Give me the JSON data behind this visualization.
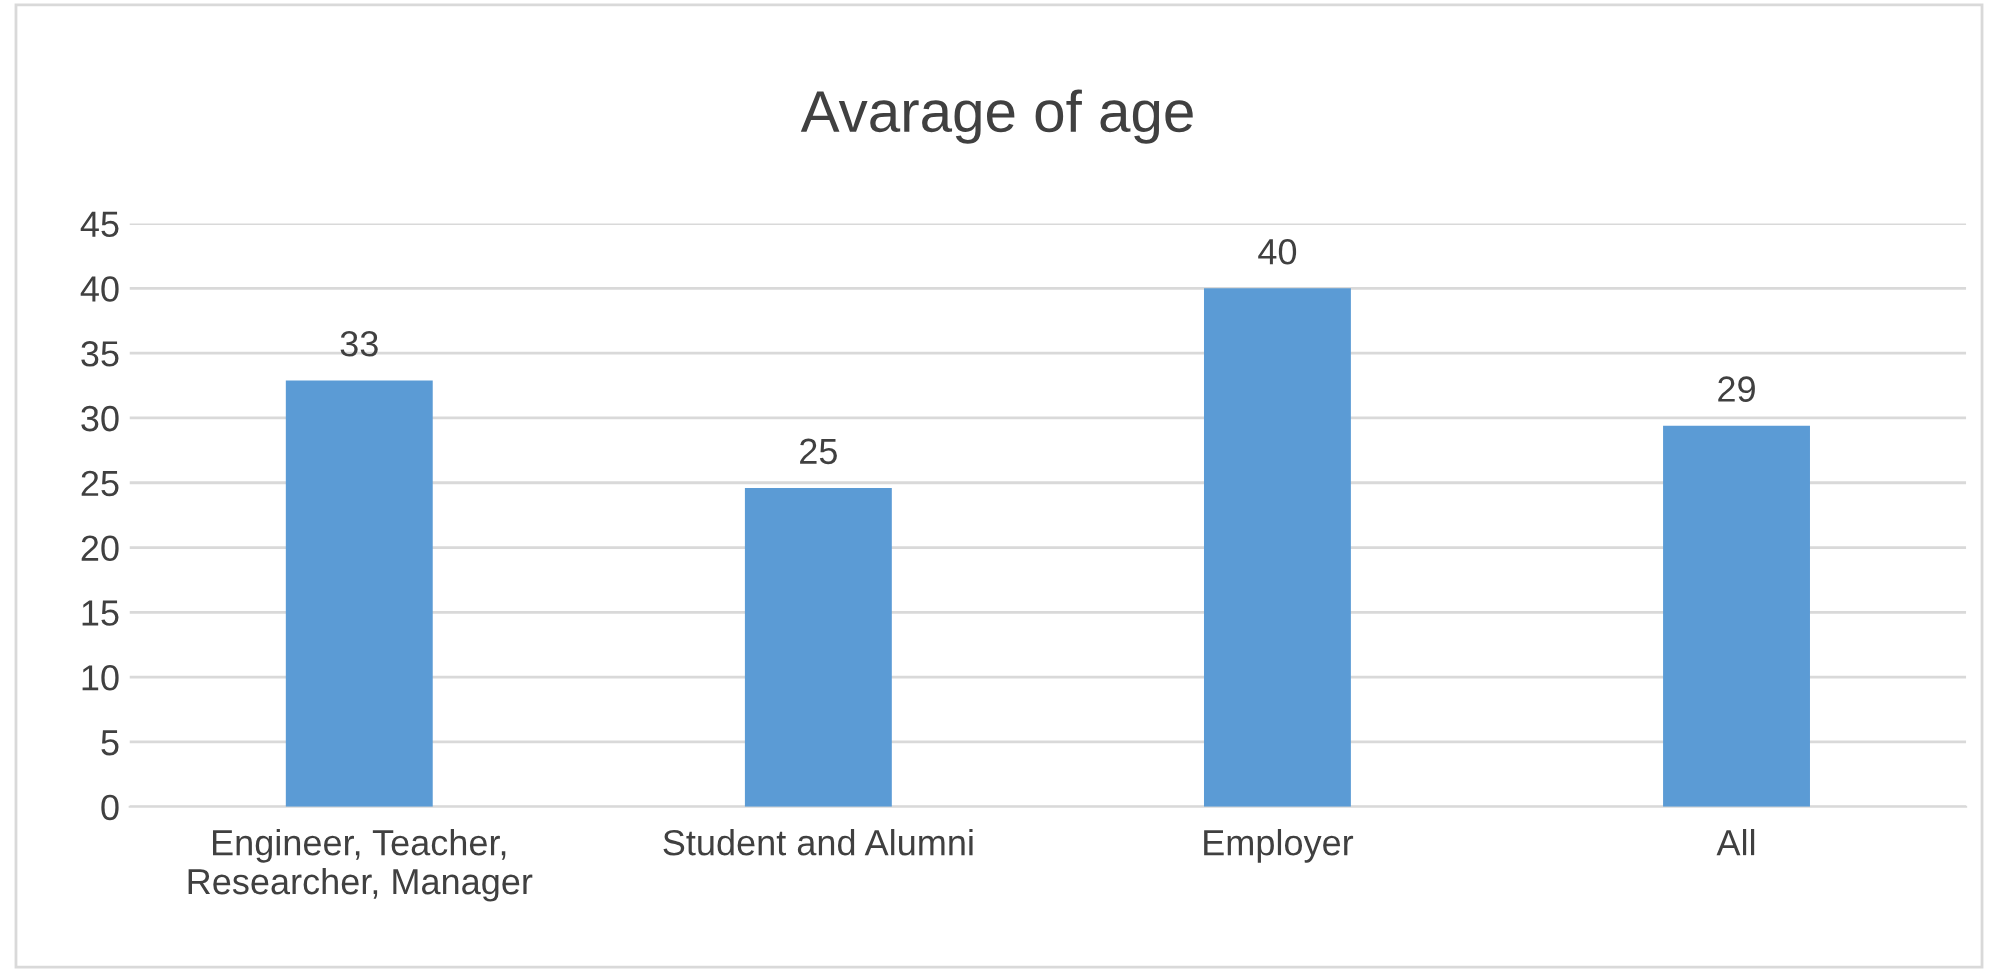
{
  "chart_data": {
    "type": "bar",
    "title": "Avarage of age",
    "categories": [
      "Engineer, Teacher,\nResearcher, Manager",
      "Student and Alumni",
      "Employer",
      "All"
    ],
    "values": [
      32.9,
      24.6,
      40.0,
      29.4
    ],
    "value_labels": [
      "33",
      "25",
      "40",
      "29"
    ],
    "color": "#5b9bd5",
    "ylim": [
      0,
      45
    ],
    "yticks": [
      0,
      5,
      10,
      15,
      20,
      25,
      30,
      35,
      40,
      45
    ],
    "grid": "y",
    "legend": false
  }
}
